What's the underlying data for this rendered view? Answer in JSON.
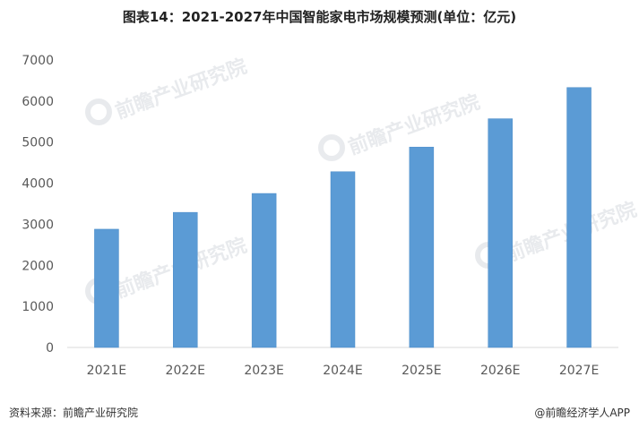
{
  "title": "图表14：2021-2027年中国智能家电市场规模预测(单位：亿元)",
  "source": "资料来源：前瞻产业研究院",
  "credit": "@前瞻经济学人APP",
  "watermark": "前瞻产业研究院",
  "colors": {
    "bar": "#5b9bd5",
    "bar_edge": "#4a8bc8",
    "axis": "#d9d9d9",
    "tick_text": "#595959"
  },
  "chart_data": {
    "type": "bar",
    "title": "图表14：2021-2027年中国智能家电市场规模预测(单位：亿元)",
    "categories": [
      "2021E",
      "2022E",
      "2023E",
      "2024E",
      "2025E",
      "2026E",
      "2027E"
    ],
    "values": [
      2880,
      3290,
      3750,
      4280,
      4880,
      5570,
      6330
    ],
    "yticks": [
      0,
      1000,
      2000,
      3000,
      4000,
      5000,
      6000,
      7000
    ],
    "ylim": [
      0,
      7000
    ],
    "grid": false,
    "legend": "none"
  }
}
